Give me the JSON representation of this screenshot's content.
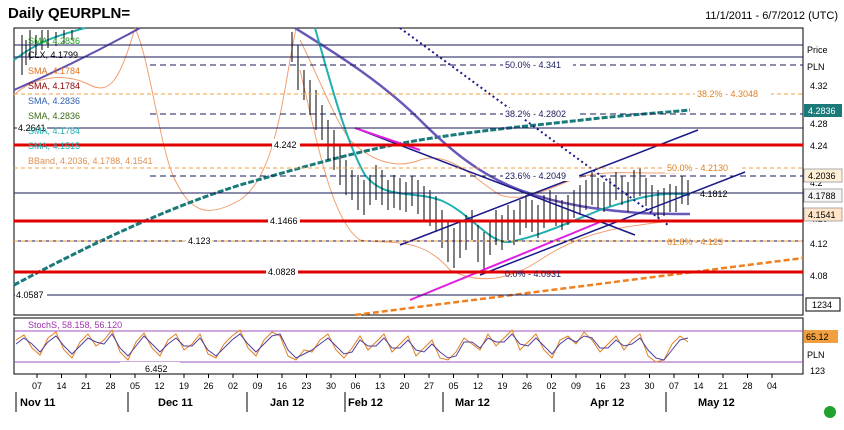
{
  "header": {
    "title": "Daily QEURPLN=",
    "date_range": "11/1/2011 - 6/7/2012 (UTC)"
  },
  "axis": {
    "price_label": "Price",
    "currency": "PLN",
    "ticks": [
      "4.32",
      "4.28",
      "4.24",
      "4.2",
      "4.16",
      "4.12",
      "4.08"
    ],
    "extra_box": "1234",
    "lower_currency": "PLN",
    "lower_box": "123"
  },
  "overlay_legend": [
    {
      "text": "SMA, 4.2836",
      "color": "#1fa01f"
    },
    {
      "text": "CLX, 4.1799",
      "color": "#000000"
    },
    {
      "text": "SMA, 4.1784",
      "color": "#e07020"
    },
    {
      "text": "SMA, 4.1784",
      "color": "#8b0000"
    },
    {
      "text": "SMA, 4.2836",
      "color": "#3060b0"
    },
    {
      "text": "SMA, 4.2836",
      "color": "#3a6a10"
    },
    {
      "text": "SMA, 4.1784",
      "color": "#20b0b0"
    },
    {
      "text": "SMA, 4.1515",
      "color": "#20b0b0"
    },
    {
      "text": "BBand, 4.2036, 4.1788, 4.1541",
      "color": "#f0a060"
    }
  ],
  "value_badges": [
    {
      "text": "4.2836",
      "bg": "#1a7a7a",
      "fg": "#ffffff"
    },
    {
      "text": "4.2036",
      "bg": "#fff0d8",
      "fg": "#000000"
    },
    {
      "text": "4.1788",
      "bg": "#f4f4f4",
      "fg": "#000000"
    },
    {
      "text": "4.1541",
      "bg": "#ffe4c8",
      "fg": "#000000"
    }
  ],
  "levels": [
    {
      "text": "4.2641",
      "kind": "navy"
    },
    {
      "text": "4.242",
      "kind": "red"
    },
    {
      "text": "4.1466",
      "kind": "red"
    },
    {
      "text": "4.123",
      "kind": "navy"
    },
    {
      "text": "4.0828",
      "kind": "red"
    },
    {
      "text": "4.0587",
      "kind": "navy"
    }
  ],
  "fib": [
    {
      "text": "50.0% - 4.341"
    },
    {
      "text": "38.2% - 4.3048"
    },
    {
      "text": "38.2% - 4.2802"
    },
    {
      "text": "23.6% - 4.2049"
    },
    {
      "text": "50.0% - 4.2130"
    },
    {
      "text": "61.8% - 4.123"
    },
    {
      "text": "0.0% - 4.0931"
    }
  ],
  "point_label": "4.1812",
  "lower": {
    "legend": "StochS, 58.158, 56.120",
    "value_badge": "65.12",
    "level": "6.452"
  },
  "x_axis": {
    "days": [
      "07",
      "14",
      "21",
      "28",
      "05",
      "12",
      "19",
      "26",
      "02",
      "09",
      "16",
      "23",
      "30",
      "06",
      "13",
      "20",
      "27",
      "05",
      "12",
      "19",
      "26",
      "02",
      "09",
      "16",
      "23",
      "30",
      "07",
      "14",
      "21",
      "28",
      "04"
    ],
    "months": [
      "Nov 11",
      "Dec 11",
      "Jan 12",
      "Feb 12",
      "Mar 12",
      "Apr 12",
      "May 12"
    ]
  },
  "chart_data": {
    "type": "line",
    "title": "Daily QEURPLN=",
    "xlabel": "",
    "ylabel": "Price",
    "ylim": [
      4.04,
      4.35
    ],
    "x": [
      "2012-01-16",
      "2012-01-23",
      "2012-01-30",
      "2012-02-06",
      "2012-02-13",
      "2012-02-20",
      "2012-02-27",
      "2012-03-05",
      "2012-03-12",
      "2012-03-19",
      "2012-03-26",
      "2012-04-02",
      "2012-04-09",
      "2012-04-16",
      "2012-04-23",
      "2012-04-30",
      "2012-05-07"
    ],
    "series": [
      {
        "name": "CLX",
        "values": [
          4.33,
          4.28,
          4.22,
          4.17,
          4.16,
          4.17,
          4.16,
          4.12,
          4.1,
          4.13,
          4.14,
          4.16,
          4.19,
          4.18,
          4.2,
          4.17,
          4.18
        ]
      }
    ],
    "horizontal_levels": [
      4.2641,
      4.242,
      4.1466,
      4.123,
      4.0828,
      4.0587
    ],
    "last_values": {
      "sma_long": 4.2836,
      "bband_upper": 4.2036,
      "bband_mid": 4.1788,
      "bband_lower": 4.1541
    }
  }
}
